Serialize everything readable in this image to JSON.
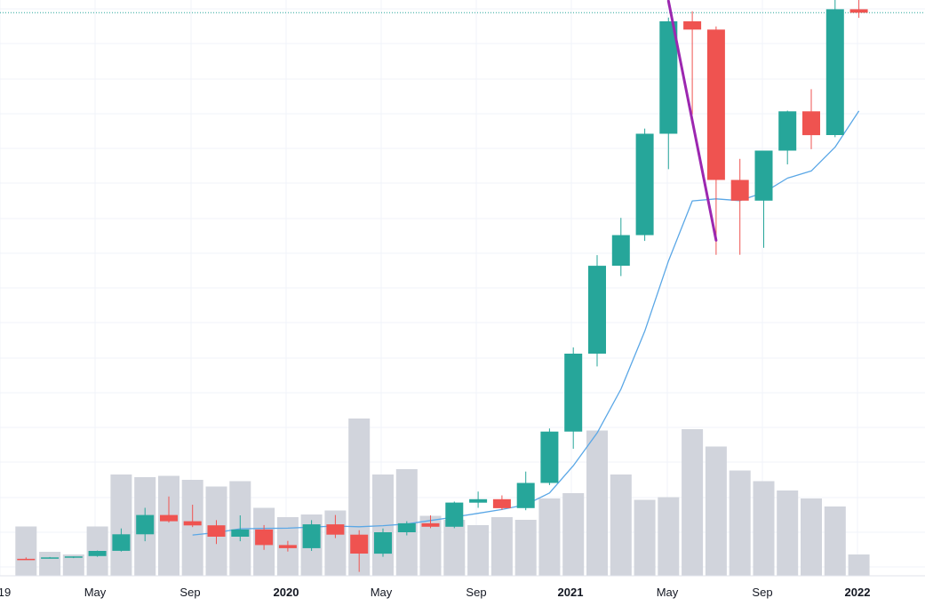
{
  "chart_data": {
    "type": "candlestick",
    "interval": "monthly",
    "grid": true,
    "legend": "none",
    "y_axis_visible": false,
    "colors": {
      "up": "#26a69a",
      "down": "#ef5350",
      "volume": "#d1d4dc",
      "ma_line": "#5aa7e6",
      "trend_line": "#9c27b0",
      "price_line": "#26a69a",
      "grid": "#f0f3fa",
      "axis_text": "#131722"
    },
    "x_tick_labels": [
      "19",
      "May",
      "Sep",
      "2020",
      "May",
      "Sep",
      "2021",
      "May",
      "Sep",
      "2022"
    ],
    "bold_tick_labels": [
      "2020",
      "2021",
      "2022"
    ],
    "candles": [
      {
        "month": "2019-02",
        "open": 3.2,
        "high": 3.6,
        "low": 3.0,
        "close": 3.1,
        "volume": 37
      },
      {
        "month": "2019-03",
        "open": 3.5,
        "high": 3.7,
        "low": 3.3,
        "close": 3.6,
        "volume": 18
      },
      {
        "month": "2019-04",
        "open": 3.6,
        "high": 3.9,
        "low": 3.4,
        "close": 3.9,
        "volume": 16
      },
      {
        "month": "2019-05",
        "open": 4.0,
        "high": 5.6,
        "low": 3.8,
        "close": 5.5,
        "volume": 37
      },
      {
        "month": "2019-06",
        "open": 5.5,
        "high": 12.0,
        "low": 5.3,
        "close": 10.3,
        "volume": 76
      },
      {
        "month": "2019-07",
        "open": 10.3,
        "high": 18.0,
        "low": 8.3,
        "close": 15.9,
        "volume": 74
      },
      {
        "month": "2019-08",
        "open": 15.9,
        "high": 21.3,
        "low": 13.7,
        "close": 14.1,
        "volume": 75
      },
      {
        "month": "2019-09",
        "open": 14.1,
        "high": 18.9,
        "low": 12.4,
        "close": 12.9,
        "volume": 72
      },
      {
        "month": "2019-10",
        "open": 12.9,
        "high": 14.4,
        "low": 7.5,
        "close": 9.6,
        "volume": 67
      },
      {
        "month": "2019-11",
        "open": 9.6,
        "high": 15.8,
        "low": 8.3,
        "close": 11.7,
        "volume": 71
      },
      {
        "month": "2019-12",
        "open": 11.7,
        "high": 13.0,
        "low": 5.8,
        "close": 7.2,
        "volume": 51
      },
      {
        "month": "2020-01",
        "open": 7.2,
        "high": 8.4,
        "low": 5.3,
        "close": 6.3,
        "volume": 44
      },
      {
        "month": "2020-02",
        "open": 6.3,
        "high": 14.4,
        "low": 5.5,
        "close": 13.2,
        "volume": 46
      },
      {
        "month": "2020-03",
        "open": 13.2,
        "high": 15.9,
        "low": 9.2,
        "close": 10.2,
        "volume": 49
      },
      {
        "month": "2020-04",
        "open": 10.2,
        "high": 11.5,
        "low": -0.6,
        "close": 4.7,
        "volume": 118
      },
      {
        "month": "2020-05",
        "open": 4.7,
        "high": 12.0,
        "low": 3.8,
        "close": 10.9,
        "volume": 76
      },
      {
        "month": "2020-06",
        "open": 10.9,
        "high": 14.1,
        "low": 10.0,
        "close": 13.5,
        "volume": 80
      },
      {
        "month": "2020-07",
        "open": 13.5,
        "high": 15.8,
        "low": 12.1,
        "close": 12.5,
        "volume": 45
      },
      {
        "month": "2020-08",
        "open": 12.5,
        "high": 19.8,
        "low": 12.1,
        "close": 19.5,
        "volume": 42
      },
      {
        "month": "2020-09",
        "open": 19.5,
        "high": 22.7,
        "low": 18.0,
        "close": 20.5,
        "volume": 38
      },
      {
        "month": "2020-10",
        "open": 20.5,
        "high": 21.6,
        "low": 17.4,
        "close": 17.9,
        "volume": 44
      },
      {
        "month": "2020-11",
        "open": 17.9,
        "high": 28.5,
        "low": 17.3,
        "close": 25.2,
        "volume": 42
      },
      {
        "month": "2020-12",
        "open": 25.2,
        "high": 41.0,
        "low": 24.6,
        "close": 40.1,
        "volume": 58
      },
      {
        "month": "2021-01",
        "open": 40.1,
        "high": 64.5,
        "low": 35.1,
        "close": 62.7,
        "volume": 62
      },
      {
        "month": "2021-02",
        "open": 62.7,
        "high": 91.3,
        "low": 59.0,
        "close": 88.2,
        "volume": 109
      },
      {
        "month": "2021-03",
        "open": 88.2,
        "high": 102.1,
        "low": 85.2,
        "close": 97.1,
        "volume": 76
      },
      {
        "month": "2021-04",
        "open": 97.1,
        "high": 128.0,
        "low": 95.4,
        "close": 126.5,
        "volume": 57
      },
      {
        "month": "2021-05",
        "open": 126.5,
        "high": 160.2,
        "low": 116.2,
        "close": 159.1,
        "volume": 59
      },
      {
        "month": "2021-06",
        "open": 159.1,
        "high": 162.0,
        "low": 132.1,
        "close": 156.7,
        "volume": 110
      },
      {
        "month": "2021-07",
        "open": 156.7,
        "high": 157.6,
        "low": 91.4,
        "close": 113.1,
        "volume": 97
      },
      {
        "month": "2021-08",
        "open": 113.1,
        "high": 119.2,
        "low": 91.4,
        "close": 107.1,
        "volume": 79
      },
      {
        "month": "2021-09",
        "open": 107.1,
        "high": 121.6,
        "low": 93.4,
        "close": 121.6,
        "volume": 71
      },
      {
        "month": "2021-10",
        "open": 121.6,
        "high": 133.2,
        "low": 117.6,
        "close": 133.0,
        "volume": 64
      },
      {
        "month": "2021-11",
        "open": 133.0,
        "high": 139.4,
        "low": 122.0,
        "close": 126.1,
        "volume": 58
      },
      {
        "month": "2021-12",
        "open": 126.1,
        "high": 167.5,
        "low": 125.5,
        "close": 162.6,
        "volume": 52
      },
      {
        "month": "2022-01",
        "open": 162.6,
        "high": 167.3,
        "low": 160.1,
        "close": 161.6,
        "volume": 16
      }
    ],
    "moving_average": [
      {
        "month": "2019-09",
        "value": 10.1
      },
      {
        "month": "2019-10",
        "value": 10.8
      },
      {
        "month": "2019-11",
        "value": 11.9
      },
      {
        "month": "2019-12",
        "value": 12.0
      },
      {
        "month": "2020-01",
        "value": 12.1
      },
      {
        "month": "2020-02",
        "value": 12.4
      },
      {
        "month": "2020-03",
        "value": 12.7
      },
      {
        "month": "2020-04",
        "value": 12.5
      },
      {
        "month": "2020-05",
        "value": 12.8
      },
      {
        "month": "2020-06",
        "value": 13.3
      },
      {
        "month": "2020-07",
        "value": 14.3
      },
      {
        "month": "2020-08",
        "value": 15.3
      },
      {
        "month": "2020-09",
        "value": 16.4
      },
      {
        "month": "2020-10",
        "value": 17.5
      },
      {
        "month": "2020-11",
        "value": 18.9
      },
      {
        "month": "2020-12",
        "value": 22.3
      },
      {
        "month": "2021-01",
        "value": 30.2
      },
      {
        "month": "2021-02",
        "value": 39.7
      },
      {
        "month": "2021-03",
        "value": 52.4
      },
      {
        "month": "2021-04",
        "value": 69.2
      },
      {
        "month": "2021-05",
        "value": 89.6
      },
      {
        "month": "2021-06",
        "value": 107.0
      },
      {
        "month": "2021-07",
        "value": 107.6
      },
      {
        "month": "2021-08",
        "value": 107.1
      },
      {
        "month": "2021-09",
        "value": 109.4
      },
      {
        "month": "2021-10",
        "value": 113.6
      },
      {
        "month": "2021-11",
        "value": 115.7
      },
      {
        "month": "2021-12",
        "value": 122.6
      },
      {
        "month": "2022-01",
        "value": 133.1
      }
    ],
    "trend_line": {
      "start": {
        "month": "2021-05",
        "price": 165.0
      },
      "end": {
        "month": "2021-07",
        "price": 95.6
      }
    },
    "last_price_line": 161.6
  }
}
